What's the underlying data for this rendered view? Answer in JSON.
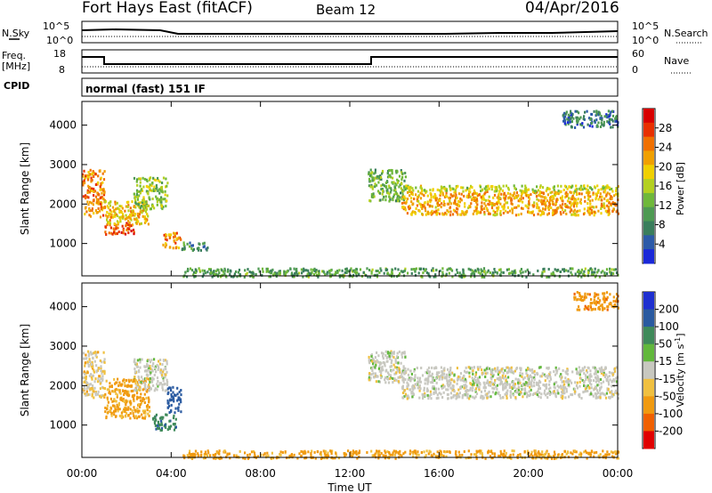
{
  "header": {
    "station": "Fort Hays East (fitACF)",
    "beam": "Beam 12",
    "date": "04/Apr/2016"
  },
  "summary": {
    "nsky_label": "N.Sky",
    "nsearch_label": "N.Search",
    "noise_ticks": [
      "10^5",
      "10^0"
    ],
    "freq_label_1": "Freq.",
    "freq_label_2": "[MHz]",
    "freq_ticks": [
      "18",
      "8"
    ],
    "nave_label": "Nave",
    "nave_ticks": [
      "60",
      "0"
    ],
    "cpid_label": "CPID",
    "cpid_text": "normal (fast) 151 IF"
  },
  "chart_data": [
    {
      "type": "heatmap",
      "title": "",
      "xlabel": "Time UT",
      "ylabel": "Slant Range [km]",
      "x_ticks": [
        "00:00",
        "04:00",
        "08:00",
        "12:00",
        "16:00",
        "20:00",
        "00:00"
      ],
      "y_ticks": [
        "1000",
        "2000",
        "3000",
        "4000"
      ],
      "xlim_hours": [
        0,
        24
      ],
      "ylim_km": [
        180,
        4600
      ],
      "colorbar": {
        "label": "Power [dB]",
        "ticks": [
          "4",
          "8",
          "12",
          "16",
          "20",
          "24",
          "28"
        ],
        "range": [
          0,
          32
        ],
        "colors": [
          "#1a28d8",
          "#2c5aa8",
          "#3a7e5c",
          "#4e9a52",
          "#6fb83a",
          "#b4d020",
          "#f0d000",
          "#f0a000",
          "#f07000",
          "#e83000",
          "#d80000"
        ]
      },
      "echo_regions": [
        {
          "t0": 0.0,
          "t1": 1.0,
          "r0": 1700,
          "r1": 2900,
          "level": 24
        },
        {
          "t0": 1.0,
          "t1": 2.3,
          "r0": 1250,
          "r1": 1550,
          "level": 28
        },
        {
          "t0": 1.0,
          "t1": 3.0,
          "r0": 1500,
          "r1": 2100,
          "level": 20
        },
        {
          "t0": 2.3,
          "t1": 3.8,
          "r0": 1900,
          "r1": 2700,
          "level": 14
        },
        {
          "t0": 3.6,
          "t1": 4.4,
          "r0": 900,
          "r1": 1300,
          "level": 24
        },
        {
          "t0": 4.4,
          "t1": 5.6,
          "r0": 850,
          "r1": 1050,
          "level": 8
        },
        {
          "t0": 12.8,
          "t1": 14.5,
          "r0": 2100,
          "r1": 2900,
          "level": 12
        },
        {
          "t0": 14.3,
          "t1": 24.0,
          "r0": 1750,
          "r1": 2350,
          "level": 22
        },
        {
          "t0": 14.3,
          "t1": 24.0,
          "r0": 2350,
          "r1": 2500,
          "level": 16
        },
        {
          "t0": 21.5,
          "t1": 24.0,
          "r0": 3950,
          "r1": 4400,
          "level": 6
        },
        {
          "t0": 4.5,
          "t1": 24.0,
          "r0": 180,
          "r1": 400,
          "level": 10
        }
      ]
    },
    {
      "type": "heatmap",
      "title": "",
      "xlabel": "Time UT",
      "ylabel": "Slant Range [km]",
      "x_ticks": [
        "00:00",
        "04:00",
        "08:00",
        "12:00",
        "16:00",
        "20:00",
        "00:00"
      ],
      "y_ticks": [
        "1000",
        "2000",
        "3000",
        "4000"
      ],
      "xlim_hours": [
        0,
        24
      ],
      "ylim_km": [
        180,
        4600
      ],
      "colorbar": {
        "label_main": "Velocity [m s",
        "label_sup": "-1",
        "label_end": "]",
        "ticks": [
          "200",
          "100",
          "50",
          "15",
          "-15",
          "-50",
          "-100",
          "-200"
        ],
        "colors": [
          "#1e2fd0",
          "#2a5aa0",
          "#3f8a5a",
          "#62b83c",
          "#c8c8c0",
          "#f0c040",
          "#f09a10",
          "#f06000",
          "#e00000"
        ]
      },
      "echo_regions": [
        {
          "t0": 0.0,
          "t1": 1.0,
          "r0": 1700,
          "r1": 2900,
          "v": -15
        },
        {
          "t0": 1.0,
          "t1": 3.0,
          "r0": 1200,
          "r1": 2200,
          "v": -40
        },
        {
          "t0": 2.3,
          "t1": 3.8,
          "r0": 1900,
          "r1": 2700,
          "v": 0
        },
        {
          "t0": 3.1,
          "t1": 4.2,
          "r0": 900,
          "r1": 1300,
          "v": 60
        },
        {
          "t0": 3.8,
          "t1": 4.4,
          "r0": 1300,
          "r1": 2000,
          "v": 120
        },
        {
          "t0": 12.8,
          "t1": 14.5,
          "r0": 2100,
          "r1": 2900,
          "v": 0
        },
        {
          "t0": 14.3,
          "t1": 24.0,
          "r0": 1700,
          "r1": 2500,
          "v": 0
        },
        {
          "t0": 22.0,
          "t1": 24.0,
          "r0": 3950,
          "r1": 4400,
          "v": -60
        },
        {
          "t0": 4.5,
          "t1": 24.0,
          "r0": 180,
          "r1": 380,
          "v": -40
        }
      ]
    }
  ]
}
